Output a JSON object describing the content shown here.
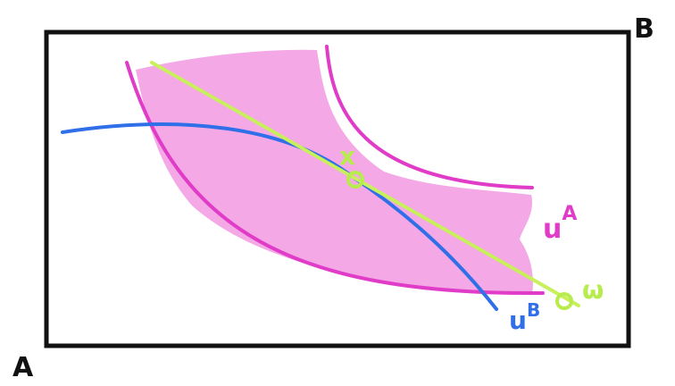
{
  "labels": {
    "corner_a": "A",
    "corner_b": "B",
    "utility_a": "u",
    "utility_a_sup": "A",
    "utility_b": "u",
    "utility_b_sup": "B",
    "point_x": "x",
    "point_w": "ω"
  },
  "colors": {
    "box": "#111111",
    "contract_region": "#f4a8e6",
    "indifference_a": "#e03cc8",
    "indifference_b": "#2f6fe8",
    "budget_line": "#c8f05a",
    "label_a": "#e03cc8",
    "label_b": "#2f6fe8",
    "label_points": "#b8ec4e",
    "corner_labels": "#111111"
  }
}
